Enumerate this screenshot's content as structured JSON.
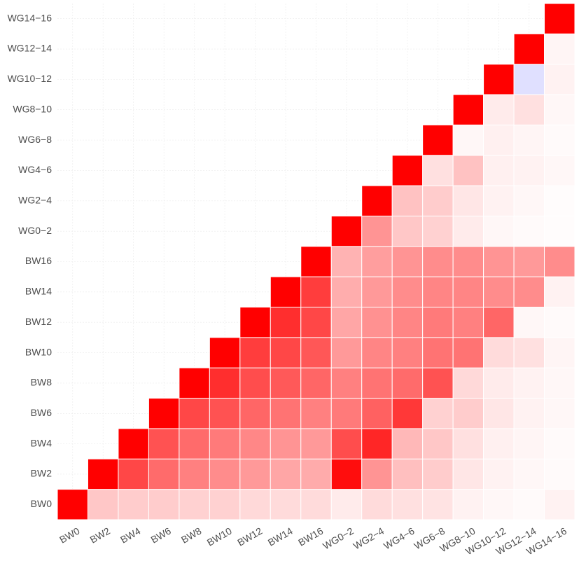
{
  "chart_data": {
    "type": "heatmap",
    "title": "",
    "xlabel": "",
    "ylabel": "",
    "categories": [
      "BW0",
      "BW2",
      "BW4",
      "BW6",
      "BW8",
      "BW10",
      "BW12",
      "BW14",
      "BW16",
      "WG0−2",
      "WG2−4",
      "WG4−6",
      "WG6−8",
      "WG8−10",
      "WG10−12",
      "WG12−14",
      "WG14−16"
    ],
    "value_range": [
      -1,
      1
    ],
    "colors": {
      "high": "#ff0000",
      "low": "#0000ff",
      "mid": "#ffffff"
    },
    "grid": true,
    "legend": "none",
    "rows": [
      {
        "y": "BW0",
        "values": [
          1.0,
          0.22,
          0.2,
          0.2,
          0.18,
          0.18,
          0.15,
          0.14,
          0.14,
          0.08,
          0.14,
          0.12,
          0.11,
          0.05,
          0.03,
          0.02,
          0.05
        ]
      },
      {
        "y": "BW2",
        "values": [
          null,
          1.0,
          0.72,
          0.58,
          0.5,
          0.45,
          0.4,
          0.35,
          0.33,
          0.95,
          0.42,
          0.25,
          0.2,
          0.1,
          0.05,
          0.03,
          0.02
        ]
      },
      {
        "y": "BW4",
        "values": [
          null,
          null,
          1.0,
          0.68,
          0.58,
          0.52,
          0.47,
          0.42,
          0.4,
          0.7,
          0.85,
          0.28,
          0.22,
          0.12,
          0.06,
          0.04,
          0.02
        ]
      },
      {
        "y": "BW6",
        "values": [
          null,
          null,
          null,
          1.0,
          0.72,
          0.68,
          0.6,
          0.55,
          0.5,
          0.52,
          0.62,
          0.78,
          0.18,
          0.2,
          0.1,
          0.05,
          0.03
        ]
      },
      {
        "y": "BW8",
        "values": [
          null,
          null,
          null,
          null,
          1.0,
          0.82,
          0.7,
          0.65,
          0.6,
          0.5,
          0.55,
          0.58,
          0.68,
          0.15,
          0.08,
          0.05,
          0.03
        ]
      },
      {
        "y": "BW10",
        "values": [
          null,
          null,
          null,
          null,
          null,
          1.0,
          0.76,
          0.72,
          0.66,
          0.4,
          0.48,
          0.5,
          0.55,
          0.55,
          0.14,
          0.12,
          0.04
        ]
      },
      {
        "y": "BW12",
        "values": [
          null,
          null,
          null,
          null,
          null,
          null,
          1.0,
          0.82,
          0.72,
          0.35,
          0.43,
          0.48,
          0.52,
          0.5,
          0.6,
          0.03,
          0.02
        ]
      },
      {
        "y": "BW14",
        "values": [
          null,
          null,
          null,
          null,
          null,
          null,
          null,
          1.0,
          0.76,
          0.32,
          0.4,
          0.45,
          0.48,
          0.48,
          0.45,
          0.45,
          0.05
        ]
      },
      {
        "y": "BW16",
        "values": [
          null,
          null,
          null,
          null,
          null,
          null,
          null,
          null,
          1.0,
          0.3,
          0.38,
          0.42,
          0.45,
          0.45,
          0.42,
          0.4,
          0.45
        ]
      },
      {
        "y": "WG0−2",
        "values": [
          null,
          null,
          null,
          null,
          null,
          null,
          null,
          null,
          null,
          1.0,
          0.42,
          0.22,
          0.18,
          0.08,
          0.03,
          0.02,
          0.01
        ]
      },
      {
        "y": "WG2−4",
        "values": [
          null,
          null,
          null,
          null,
          null,
          null,
          null,
          null,
          null,
          null,
          1.0,
          0.24,
          0.2,
          0.1,
          0.05,
          0.03,
          0.01
        ]
      },
      {
        "y": "WG4−6",
        "values": [
          null,
          null,
          null,
          null,
          null,
          null,
          null,
          null,
          null,
          null,
          null,
          1.0,
          0.12,
          0.24,
          0.06,
          0.05,
          0.03
        ]
      },
      {
        "y": "WG6−8",
        "values": [
          null,
          null,
          null,
          null,
          null,
          null,
          null,
          null,
          null,
          null,
          null,
          null,
          1.0,
          0.03,
          0.06,
          0.04,
          0.02
        ]
      },
      {
        "y": "WG8−10",
        "values": [
          null,
          null,
          null,
          null,
          null,
          null,
          null,
          null,
          null,
          null,
          null,
          null,
          null,
          1.0,
          0.08,
          0.12,
          0.03
        ]
      },
      {
        "y": "WG10−12",
        "values": [
          null,
          null,
          null,
          null,
          null,
          null,
          null,
          null,
          null,
          null,
          null,
          null,
          null,
          null,
          1.0,
          -0.12,
          0.05
        ]
      },
      {
        "y": "WG12−14",
        "values": [
          null,
          null,
          null,
          null,
          null,
          null,
          null,
          null,
          null,
          null,
          null,
          null,
          null,
          null,
          null,
          1.0,
          0.04
        ]
      },
      {
        "y": "WG14−16",
        "values": [
          null,
          null,
          null,
          null,
          null,
          null,
          null,
          null,
          null,
          null,
          null,
          null,
          null,
          null,
          null,
          null,
          1.0
        ]
      }
    ]
  }
}
